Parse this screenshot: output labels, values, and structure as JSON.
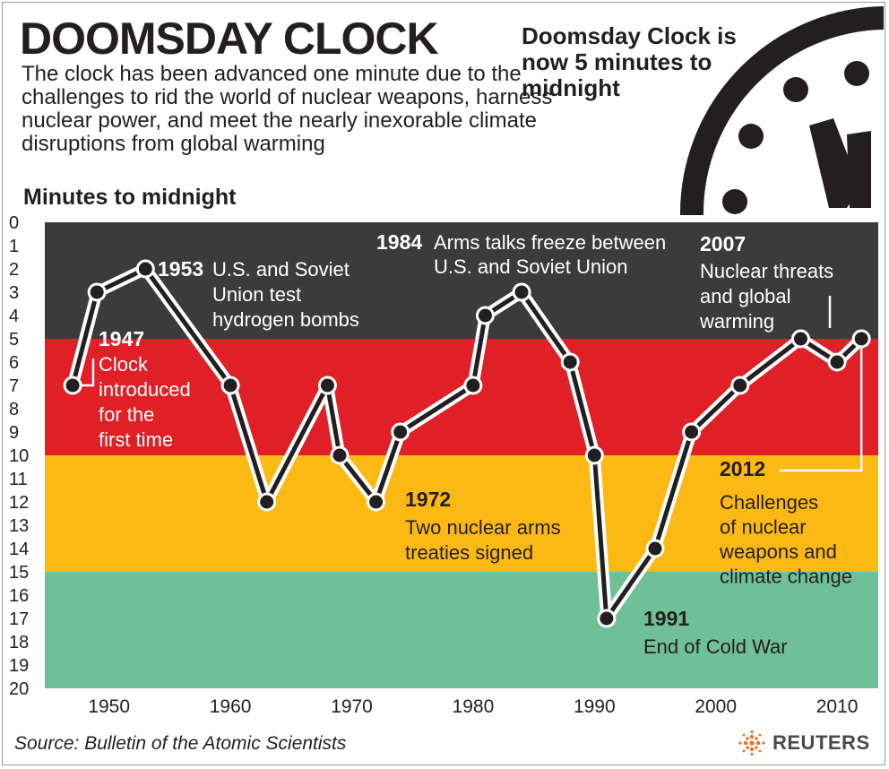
{
  "header": {
    "title": "DOOMSDAY CLOCK",
    "subtitle": "The clock has been advanced one minute due to the challenges to rid the world of nuclear weapons, harness nuclear power, and meet the nearly inexorable climate disruptions from global warming",
    "callout": "Doomsday Clock is now 5 minutes to midnight"
  },
  "footer": {
    "source": "Source: Bulletin of the Atomic Scientists",
    "brand": "REUTERS"
  },
  "colors": {
    "band_0_5": "#3b3b3b",
    "band_5_10": "#e01f26",
    "band_10_15": "#fdb913",
    "band_15_20": "#6fbf97",
    "line": "#231f20",
    "line_outline": "#ffffff",
    "brand_orange": "#f36f21"
  },
  "chart_data": {
    "type": "line",
    "xlabel": "",
    "ylabel": "Minutes to midnight",
    "ylim": [
      0,
      20
    ],
    "y_inverted": true,
    "xlim": [
      1945,
      2012
    ],
    "xticks": [
      1950,
      1960,
      1970,
      1980,
      1990,
      2000,
      2010
    ],
    "yticks": [
      0,
      1,
      2,
      3,
      4,
      5,
      6,
      7,
      8,
      9,
      10,
      11,
      12,
      13,
      14,
      15,
      16,
      17,
      18,
      19,
      20
    ],
    "bands": [
      {
        "from": 0,
        "to": 5,
        "color": "#3b3b3b"
      },
      {
        "from": 5,
        "to": 10,
        "color": "#e01f26"
      },
      {
        "from": 10,
        "to": 15,
        "color": "#fdb913"
      },
      {
        "from": 15,
        "to": 20,
        "color": "#6fbf97"
      }
    ],
    "series": [
      {
        "points": [
          {
            "x": 1947,
            "y": 7
          },
          {
            "x": 1949,
            "y": 3
          },
          {
            "x": 1953,
            "y": 2
          },
          {
            "x": 1960,
            "y": 7
          },
          {
            "x": 1963,
            "y": 12
          },
          {
            "x": 1968,
            "y": 7
          },
          {
            "x": 1969,
            "y": 10
          },
          {
            "x": 1972,
            "y": 12
          },
          {
            "x": 1974,
            "y": 9
          },
          {
            "x": 1980,
            "y": 7
          },
          {
            "x": 1981,
            "y": 4
          },
          {
            "x": 1984,
            "y": 3
          },
          {
            "x": 1988,
            "y": 6
          },
          {
            "x": 1990,
            "y": 10
          },
          {
            "x": 1991,
            "y": 17
          },
          {
            "x": 1995,
            "y": 14
          },
          {
            "x": 1998,
            "y": 9
          },
          {
            "x": 2002,
            "y": 7
          },
          {
            "x": 2007,
            "y": 5
          },
          {
            "x": 2010,
            "y": 6
          },
          {
            "x": 2012,
            "y": 5
          }
        ]
      }
    ],
    "annotations": [
      {
        "year": "1947",
        "text": [
          "Clock",
          "introduced",
          "for the",
          "first time"
        ]
      },
      {
        "year": "1953",
        "text": [
          "U.S. and Soviet",
          "Union test",
          "hydrogen bombs"
        ]
      },
      {
        "year": "1972",
        "text": [
          "Two nuclear arms",
          "treaties signed"
        ]
      },
      {
        "year": "1984",
        "text": [
          "Arms talks freeze between",
          "U.S. and Soviet Union"
        ]
      },
      {
        "year": "1991",
        "text": [
          "End of Cold War"
        ]
      },
      {
        "year": "2007",
        "text": [
          "Nuclear threats",
          "and global",
          "warming"
        ]
      },
      {
        "year": "2012",
        "text": [
          "Challenges",
          "of nuclear",
          "weapons and",
          "climate change"
        ]
      }
    ]
  }
}
